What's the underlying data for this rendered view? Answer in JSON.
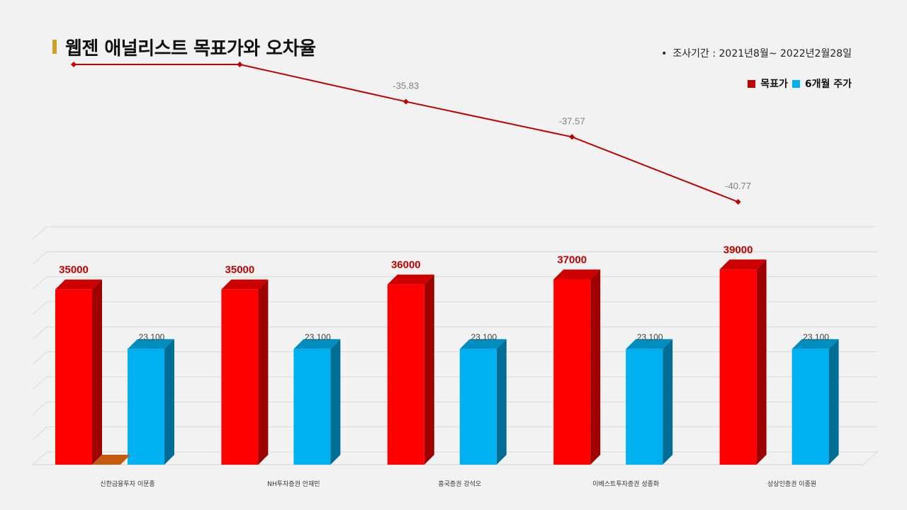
{
  "page": {
    "title": "웹젠 애널리스트 목표가와 오차율",
    "period_bullet": "•",
    "period": "조사기간 : 2021년8월~ 2022년2월28일"
  },
  "legend": {
    "target_label": "목표가",
    "price_label": "6개월 주가"
  },
  "colors": {
    "target": "#ff0000",
    "price": "#00b0f0",
    "line": "#c00000",
    "highlight": "#c55a11"
  },
  "chart_data": {
    "type": "bar",
    "categories": [
      "신한금융투자 이문종",
      "NH투자증권 안재민",
      "흥국증권 강석오",
      "이베스트투자증권 성종화",
      "상상인증권 이종원"
    ],
    "series": [
      {
        "name": "목표가",
        "values": [
          35000,
          35000,
          36000,
          37000,
          39000
        ],
        "value_labels": [
          "35000",
          "35000",
          "36000",
          "37000",
          "39000"
        ]
      },
      {
        "name": "6개월 주가",
        "values": [
          23100,
          23100,
          23100,
          23100,
          23100
        ],
        "value_labels": [
          "23,100",
          "23,100",
          "23,100",
          "23,100",
          "23,100"
        ]
      }
    ],
    "error_rate": {
      "values": [
        -34.0,
        -34.0,
        -35.83,
        -37.57,
        -40.77
      ],
      "labels": [
        "",
        "",
        "-35.83",
        "-37.57",
        "-40.77"
      ]
    },
    "ylim": [
      0,
      45000
    ],
    "grid": true,
    "legend_position": "top-right"
  }
}
